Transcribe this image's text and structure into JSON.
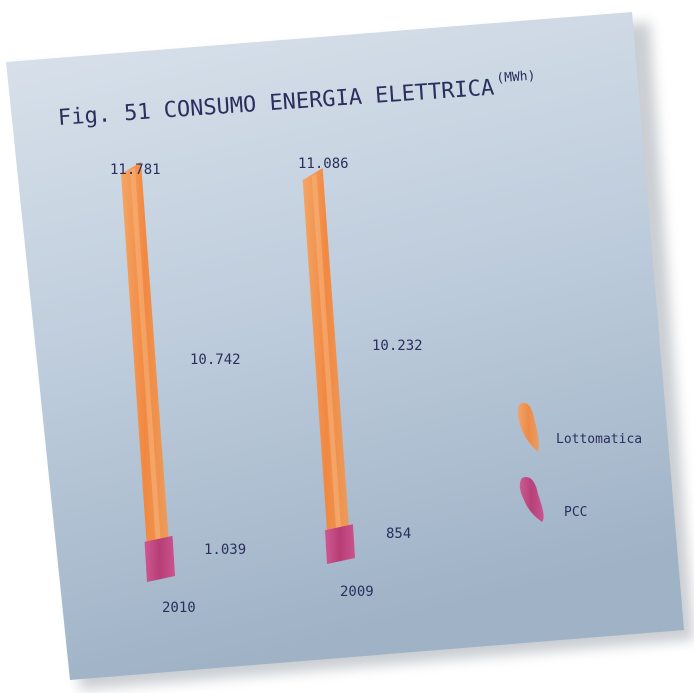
{
  "chart_data": {
    "type": "bar",
    "title": "Fig. 51 CONSUMO ENERGIA ELETTRICA",
    "unit": "(MWh)",
    "categories": [
      "2010",
      "2009"
    ],
    "totals": [
      "11.781",
      "11.086"
    ],
    "series": [
      {
        "name": "Lottomatica",
        "values": [
          10742,
          10232
        ],
        "labels": [
          "10.742",
          "10.232"
        ],
        "color": "#f4893e"
      },
      {
        "name": "PCC",
        "values": [
          1039,
          854
        ],
        "labels": [
          "1.039",
          "854"
        ],
        "color": "#c03a78"
      }
    ],
    "legend_position": "right"
  },
  "colors": {
    "card_top": "#d6dde7",
    "card_bottom": "#9fb3c7",
    "text": "#2a2f5e"
  }
}
